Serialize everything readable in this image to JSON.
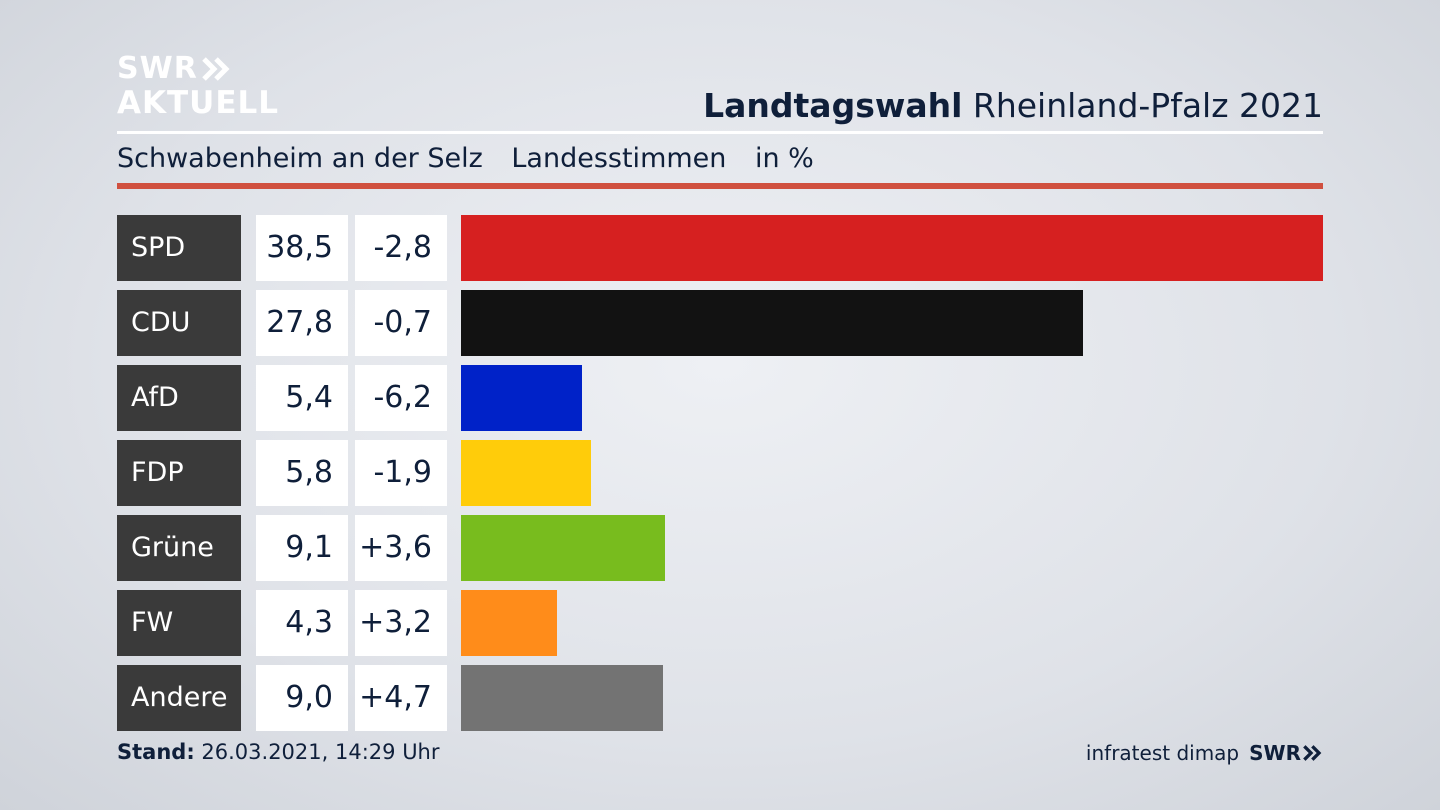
{
  "branding": {
    "logo_line1": "SWR",
    "logo_line2": "AKTUELL",
    "footer_logo": "SWR"
  },
  "header": {
    "title_bold": "Landtagswahl",
    "title_rest": "Rheinland-Pfalz 2021",
    "location": "Schwabenheim an der Selz",
    "vote_type": "Landesstimmen",
    "unit": "in %"
  },
  "footer": {
    "stand_label": "Stand:",
    "stand_value": "26.03.2021, 14:29 Uhr",
    "source": "infratest dimap"
  },
  "chart_data": {
    "type": "bar",
    "orientation": "horizontal",
    "title": "Landtagswahl Rheinland-Pfalz 2021",
    "subtitle": "Schwabenheim an der Selz Landesstimmen in %",
    "categories": [
      "SPD",
      "CDU",
      "AfD",
      "FDP",
      "Grüne",
      "FW",
      "Andere"
    ],
    "values": [
      38.5,
      27.8,
      5.4,
      5.8,
      9.1,
      4.3,
      9.0
    ],
    "value_labels": [
      "38,5",
      "27,8",
      "5,4",
      "5,8",
      "9,1",
      "4,3",
      "9,0"
    ],
    "diff_labels": [
      "-2,8",
      "-0,7",
      "-6,2",
      "-1,9",
      "+3,6",
      "+3,2",
      "+4,7"
    ],
    "colors": [
      "#d62020",
      "#121212",
      "#0022c8",
      "#ffcc0a",
      "#78bc1e",
      "#ff8c1a",
      "#737373"
    ],
    "xlim": [
      0,
      38.5
    ]
  }
}
